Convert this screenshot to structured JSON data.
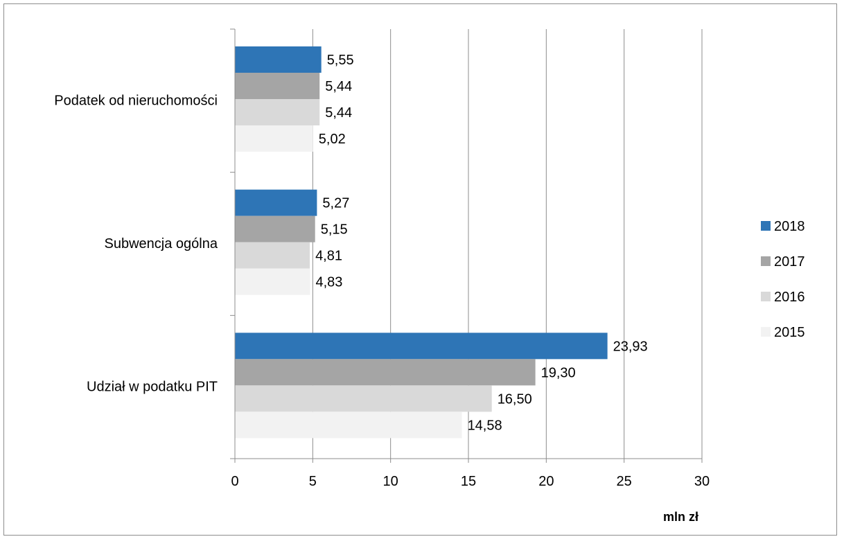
{
  "chart_data": {
    "type": "bar",
    "orientation": "horizontal",
    "categories": [
      "Podatek od nieruchomości",
      "Subwencja ogólna",
      "Udział w podatku PIT"
    ],
    "series": [
      {
        "name": "2018",
        "color": "#2e75b6",
        "values": [
          5.55,
          5.27,
          23.93
        ],
        "labels": [
          "5,55",
          "5,27",
          "23,93"
        ]
      },
      {
        "name": "2017",
        "color": "#a5a5a5",
        "values": [
          5.44,
          5.15,
          19.3
        ],
        "labels": [
          "5,44",
          "5,15",
          "19,30"
        ]
      },
      {
        "name": "2016",
        "color": "#d9d9d9",
        "values": [
          5.44,
          4.81,
          16.5
        ],
        "labels": [
          "5,44",
          "4,81",
          "16,50"
        ]
      },
      {
        "name": "2015",
        "color": "#f2f2f2",
        "values": [
          5.02,
          4.83,
          14.58
        ],
        "labels": [
          "5,02",
          "4,83",
          "14,58"
        ]
      }
    ],
    "xlim": [
      0,
      30
    ],
    "xticks": [
      0,
      5,
      10,
      15,
      20,
      25,
      30
    ],
    "xlabel": "mln zł",
    "ylabel": "",
    "title": "",
    "grid": true,
    "legend_position": "right"
  }
}
